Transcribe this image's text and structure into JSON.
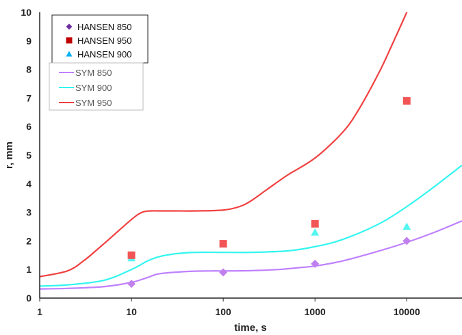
{
  "chart_data": {
    "type": "scatter",
    "xlabel": "time, s",
    "ylabel": "r, mm",
    "x_scale": "log",
    "xlim": [
      1,
      40000
    ],
    "ylim": [
      0,
      10
    ],
    "grid": false,
    "x_ticks": [
      "1",
      "10",
      "100",
      "1000",
      "10000"
    ],
    "y_ticks": [
      "0",
      "1",
      "2",
      "3",
      "4",
      "5",
      "6",
      "7",
      "8",
      "9",
      "10"
    ],
    "legend_markers": [
      {
        "name": "HANSEN 850",
        "marker": "diamond",
        "color": "#7030a0"
      },
      {
        "name": "HANSEN 950",
        "marker": "square",
        "color": "#c00000"
      },
      {
        "name": "HANSEN 900",
        "marker": "triangle",
        "color": "#00b0f0"
      }
    ],
    "legend_lines": [
      {
        "name": "SYM 850",
        "color": "#bf80ff"
      },
      {
        "name": "SYM 900",
        "color": "#33f5f0"
      },
      {
        "name": "SYM 950",
        "color": "#f04040"
      }
    ],
    "legend_placement": "top-left",
    "marker_series": [
      {
        "name": "HANSEN 850",
        "marker": "diamond",
        "color": "#c080ee",
        "x": [
          10,
          100,
          1000,
          10000
        ],
        "y": [
          0.5,
          0.9,
          1.2,
          2.0
        ]
      },
      {
        "name": "HANSEN 900",
        "marker": "triangle",
        "color": "#55f5f0",
        "x": [
          10,
          100,
          1000,
          10000
        ],
        "y": [
          1.4,
          1.9,
          2.3,
          2.5
        ]
      },
      {
        "name": "HANSEN 950",
        "marker": "square",
        "color": "#f25555",
        "x": [
          10,
          100,
          1000,
          10000
        ],
        "y": [
          1.5,
          1.9,
          2.6,
          6.9
        ]
      }
    ],
    "line_series": [
      {
        "name": "SYM 850",
        "color": "#bf80ff",
        "x": [
          1,
          2,
          5,
          10,
          15,
          20,
          40,
          70,
          100,
          200,
          400,
          700,
          1000,
          2000,
          5000,
          10000,
          20000,
          40000
        ],
        "y": [
          0.32,
          0.34,
          0.4,
          0.55,
          0.72,
          0.85,
          0.93,
          0.95,
          0.95,
          0.96,
          1.0,
          1.07,
          1.12,
          1.3,
          1.65,
          1.95,
          2.3,
          2.7
        ]
      },
      {
        "name": "SYM 900",
        "color": "#33f5f0",
        "x": [
          1,
          2,
          5,
          10,
          15,
          20,
          30,
          50,
          100,
          200,
          500,
          1000,
          2000,
          5000,
          10000,
          20000,
          40000
        ],
        "y": [
          0.42,
          0.46,
          0.62,
          1.0,
          1.3,
          1.45,
          1.55,
          1.6,
          1.6,
          1.6,
          1.65,
          1.8,
          2.05,
          2.6,
          3.2,
          3.9,
          4.65
        ]
      },
      {
        "name": "SYM 950",
        "color": "#f04040",
        "x": [
          1,
          2,
          3,
          5,
          10,
          13,
          16,
          20,
          30,
          50,
          100,
          150,
          200,
          300,
          500,
          1000,
          2000,
          3000,
          5000,
          7000,
          10000,
          12000
        ],
        "y": [
          0.75,
          0.95,
          1.3,
          1.9,
          2.75,
          3.0,
          3.05,
          3.05,
          3.05,
          3.05,
          3.08,
          3.2,
          3.4,
          3.8,
          4.3,
          4.9,
          5.8,
          6.6,
          7.9,
          8.9,
          10.0,
          10.6
        ]
      }
    ]
  }
}
